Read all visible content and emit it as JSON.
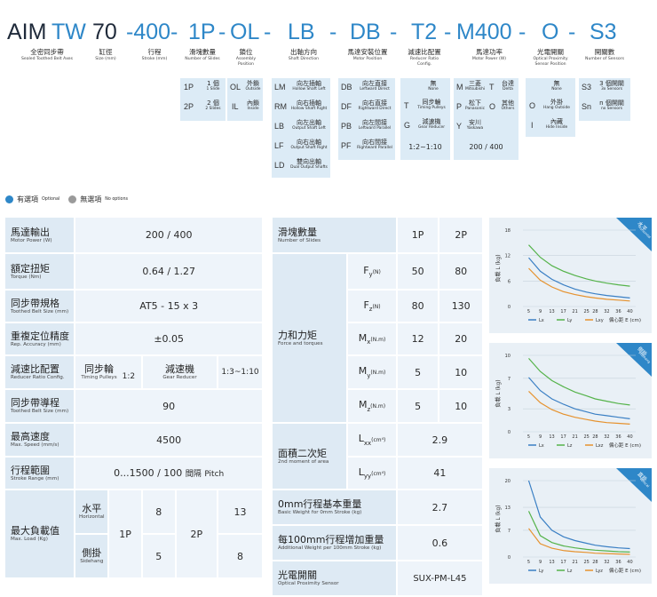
{
  "code": {
    "p1": "AIM",
    "p2": "TW",
    "p3": "70",
    "p4": "-400-",
    "p5": "1P",
    "p6": "-",
    "p7": "OL",
    "p8": "-",
    "p9": "LB",
    "p10": "-",
    "p11": "DB",
    "p12": "-",
    "p13": "T2",
    "p14": "-",
    "p15": "M400",
    "p16": "-",
    "p17": "O",
    "p18": "-",
    "p19": "S3"
  },
  "heads": [
    {
      "c": "全密同步帶",
      "e": "Sealed Toothed Belt Axes"
    },
    {
      "c": "缸徑",
      "e": "Size (mm)"
    },
    {
      "c": "行程",
      "e": "Stroke (mm)"
    },
    {
      "c": "滑塊數量",
      "e": "Number of Slides"
    },
    {
      "c": "鎖位",
      "e": "Assembly Position"
    },
    {
      "c": "出軸方向",
      "e": "Shaft Direction"
    },
    {
      "c": "馬達安裝位置",
      "e": "Motor Position"
    },
    {
      "c": "減速比配置",
      "e": "Reducer Ratio Config."
    },
    {
      "c": "馬達功率",
      "e": "Motor Power (W)"
    },
    {
      "c": "光電開關",
      "e": "Optical Proximity Sensor Position"
    },
    {
      "c": "開關數",
      "e": "Number of Sensors"
    }
  ],
  "slides": [
    {
      "k": "1P",
      "c": "1 個",
      "e": "1 Slide"
    },
    {
      "k": "2P",
      "c": "2 個",
      "e": "2 Slides"
    }
  ],
  "assembly": [
    {
      "k": "OL",
      "c": "外鎖",
      "e": "Outside"
    },
    {
      "k": "IL",
      "c": "內鎖",
      "e": "Inside"
    }
  ],
  "shaft": [
    {
      "k": "LM",
      "c": "向左插軸",
      "e": "Hollow Shaft Left"
    },
    {
      "k": "RM",
      "c": "向右插軸",
      "e": "Hollow Shaft Right"
    },
    {
      "k": "LB",
      "c": "向左出軸",
      "e": "Output Shaft Left"
    },
    {
      "k": "LF",
      "c": "向右出軸",
      "e": "Output Shaft Right"
    },
    {
      "k": "LD",
      "c": "雙向出軸",
      "e": "Dual Output Shafts"
    }
  ],
  "motorpos": [
    {
      "k": "DB",
      "c": "向左直接",
      "e": "Leftward Direct"
    },
    {
      "k": "DF",
      "c": "向右直接",
      "e": "Rightward Direct"
    },
    {
      "k": "PB",
      "c": "向左間接",
      "e": "Leftward Parallel"
    },
    {
      "k": "PF",
      "c": "向右間接",
      "e": "Rightward Parallel"
    }
  ],
  "reducer": [
    {
      "k": "",
      "c": "無",
      "e": "None"
    },
    {
      "k": "T",
      "c": "同步輪",
      "e": "Timing Pulleys"
    },
    {
      "k": "G",
      "c": "減速機",
      "e": "Gear Reducer"
    }
  ],
  "reducer_ratio": "1:2~1:10",
  "power": [
    {
      "k": "M",
      "c": "三菱",
      "e": "Mitsubishi"
    },
    {
      "k": "T",
      "c": "台達",
      "e": "Delta"
    },
    {
      "k": "P",
      "c": "松下",
      "e": "Panasonic"
    },
    {
      "k": "O",
      "c": "其他",
      "e": "Others"
    },
    {
      "k": "Y",
      "c": "安川",
      "e": "Yaskawa"
    }
  ],
  "power_values": "200 / 400",
  "sensorpos": [
    {
      "k": "",
      "c": "無",
      "e": "None"
    },
    {
      "k": "O",
      "c": "外掛",
      "e": "Hang Outside"
    },
    {
      "k": "I",
      "c": "內藏",
      "e": "Hide Inside"
    }
  ],
  "sensors": [
    {
      "k": "S3",
      "c": "3 個開關",
      "e": "3x Sensors"
    },
    {
      "k": "Sn",
      "c": "n 個開關",
      "e": "nx Sensors"
    }
  ],
  "legend": {
    "opt_c": "有選項",
    "opt_e": "Optional",
    "no_c": "無選項",
    "no_e": "No options"
  },
  "left": {
    "motor_power": {
      "c": "馬達輸出",
      "e": "Motor Power (W)",
      "v": "200 / 400"
    },
    "torque": {
      "c": "額定扭矩",
      "e": "Torque (Nm)",
      "v": "0.64 / 1.27"
    },
    "belt": {
      "c": "同步帶規格",
      "e": "Toothed Belt Size (mm)",
      "v": "AT5 - 15 x 3"
    },
    "accuracy": {
      "c": "重複定位精度",
      "e": "Rep. Accuracy (mm)",
      "v": "±0.05"
    },
    "reducer": {
      "c": "減速比配置",
      "e": "Reducer Ratio Config.",
      "t_c": "同步輪",
      "t_e": "Timing Pulleys",
      "t_v": "1:2",
      "g_c": "減速機",
      "g_e": "Gear Reducer",
      "g_v": "1:3~1:10"
    },
    "lead": {
      "c": "同步帶導程",
      "e": "Toothed Belt Size (mm)",
      "v": "90"
    },
    "speed": {
      "c": "最高速度",
      "e": "Max. Speed (mm/s)",
      "v": "4500"
    },
    "stroke": {
      "c": "行程範圍",
      "e": "Stroke Range (mm)",
      "v1": "0...1500 / 100",
      "v2": "間隔",
      "v3": "Pitch"
    },
    "load": {
      "c": "最大負載值",
      "e": "Max. Load (Kg)",
      "h_c": "水平",
      "h_e": "Horizontal",
      "s_c": "側掛",
      "s_e": "Sidehang",
      "p1": "1P",
      "p2": "2P",
      "h1": "8",
      "h2": "13",
      "s1": "5",
      "s2": "8"
    }
  },
  "right": {
    "slides": {
      "c": "滑塊數量",
      "e": "Number of Slides",
      "v1": "1P",
      "v2": "2P"
    },
    "force": {
      "c": "力和力矩",
      "e": "Force and torques"
    },
    "rows": [
      {
        "s": "F",
        "sub": "y",
        "u": "(N)",
        "v1": "50",
        "v2": "80"
      },
      {
        "s": "F",
        "sub": "z",
        "u": "(N)",
        "v1": "80",
        "v2": "130"
      },
      {
        "s": "M",
        "sub": "x",
        "u": "(N.m)",
        "v1": "12",
        "v2": "20"
      },
      {
        "s": "M",
        "sub": "y",
        "u": "(N.m)",
        "v1": "5",
        "v2": "10"
      },
      {
        "s": "M",
        "sub": "z",
        "u": "(N.m)",
        "v1": "5",
        "v2": "10"
      }
    ],
    "moment": {
      "c": "面積二次矩",
      "e": "2nd moment of area",
      "lxx": "L",
      "lxx_sub": "xx",
      "lxx_u": "(cm⁴)",
      "lxx_v": "2.9",
      "lyy": "L",
      "lyy_sub": "yy",
      "lyy_u": "(cm⁴)",
      "lyy_v": "41"
    },
    "base_weight": {
      "c": "0mm行程基本重量",
      "e": "Basic Weight for 0mm Stroke (kg)",
      "v": "2.7"
    },
    "add_weight": {
      "c": "每100mm行程增加重量",
      "e": "Additional Weight per 100mm Stroke (kg)",
      "v": "0.6"
    },
    "sensor": {
      "c": "光電開關",
      "e": "Optical Proximity Sensor",
      "v": "SUX-PM-L45"
    }
  },
  "chart_data": [
    {
      "type": "line",
      "tag_c": "水平",
      "tag_e": "Horizontal",
      "ylabel": "負載 L (kg)",
      "xlabel": "偏心距 E (cm)",
      "x": [
        5,
        9,
        13,
        17,
        21,
        25,
        28,
        32,
        36,
        40
      ],
      "yticks": [
        0,
        6,
        12,
        18
      ],
      "ylim": [
        0,
        18
      ],
      "series": [
        {
          "name": "Lx",
          "color": "#3a7fc4",
          "values": [
            11.5,
            8.3,
            6.4,
            5.1,
            4.1,
            3.4,
            3.0,
            2.6,
            2.3,
            2.0
          ]
        },
        {
          "name": "Ly",
          "color": "#55b34a",
          "values": [
            14.5,
            11.6,
            9.6,
            8.3,
            7.3,
            6.5,
            6.0,
            5.5,
            5.1,
            4.8
          ]
        },
        {
          "name": "Lxy",
          "color": "#e6922e",
          "values": [
            9.0,
            6.2,
            4.6,
            3.5,
            2.8,
            2.3,
            2.0,
            1.7,
            1.5,
            1.3
          ]
        }
      ]
    },
    {
      "type": "line",
      "tag_c": "側掛",
      "tag_e": "Sidehang",
      "ylabel": "負載 L (kg)",
      "xlabel": "偏心距 E (cm)",
      "x": [
        5,
        9,
        13,
        17,
        21,
        25,
        28,
        32,
        36,
        40
      ],
      "yticks": [
        0,
        3,
        7,
        10
      ],
      "ylim": [
        0,
        10
      ],
      "series": [
        {
          "name": "Lx",
          "color": "#3a7fc4",
          "values": [
            7.1,
            5.4,
            4.3,
            3.6,
            3.0,
            2.6,
            2.3,
            2.1,
            1.9,
            1.7
          ]
        },
        {
          "name": "Lz",
          "color": "#55b34a",
          "values": [
            9.6,
            7.9,
            6.7,
            5.9,
            5.2,
            4.7,
            4.3,
            4.0,
            3.7,
            3.5
          ]
        },
        {
          "name": "Lxz",
          "color": "#e6922e",
          "values": [
            5.3,
            3.8,
            2.9,
            2.3,
            1.9,
            1.6,
            1.4,
            1.2,
            1.1,
            1.0
          ]
        }
      ]
    },
    {
      "type": "line",
      "tag_c": "直掛",
      "tag_e": "Vertical",
      "ylabel": "負載 L (kg)",
      "xlabel": "偏心距 E (cm)",
      "x": [
        5,
        9,
        13,
        17,
        21,
        25,
        28,
        32,
        36,
        40
      ],
      "yticks": [
        0,
        7,
        13,
        20
      ],
      "ylim": [
        0,
        20
      ],
      "series": [
        {
          "name": "Ly",
          "color": "#3a7fc4",
          "values": [
            20,
            10.5,
            7.0,
            5.3,
            4.3,
            3.6,
            3.1,
            2.7,
            2.4,
            2.2
          ]
        },
        {
          "name": "Lz",
          "color": "#55b34a",
          "values": [
            12,
            5.6,
            3.8,
            2.9,
            2.4,
            2.0,
            1.8,
            1.6,
            1.4,
            1.3
          ]
        },
        {
          "name": "Lyz",
          "color": "#e6922e",
          "values": [
            7.5,
            3.5,
            2.3,
            1.7,
            1.4,
            1.2,
            1.0,
            0.9,
            0.8,
            0.7
          ]
        }
      ]
    }
  ]
}
